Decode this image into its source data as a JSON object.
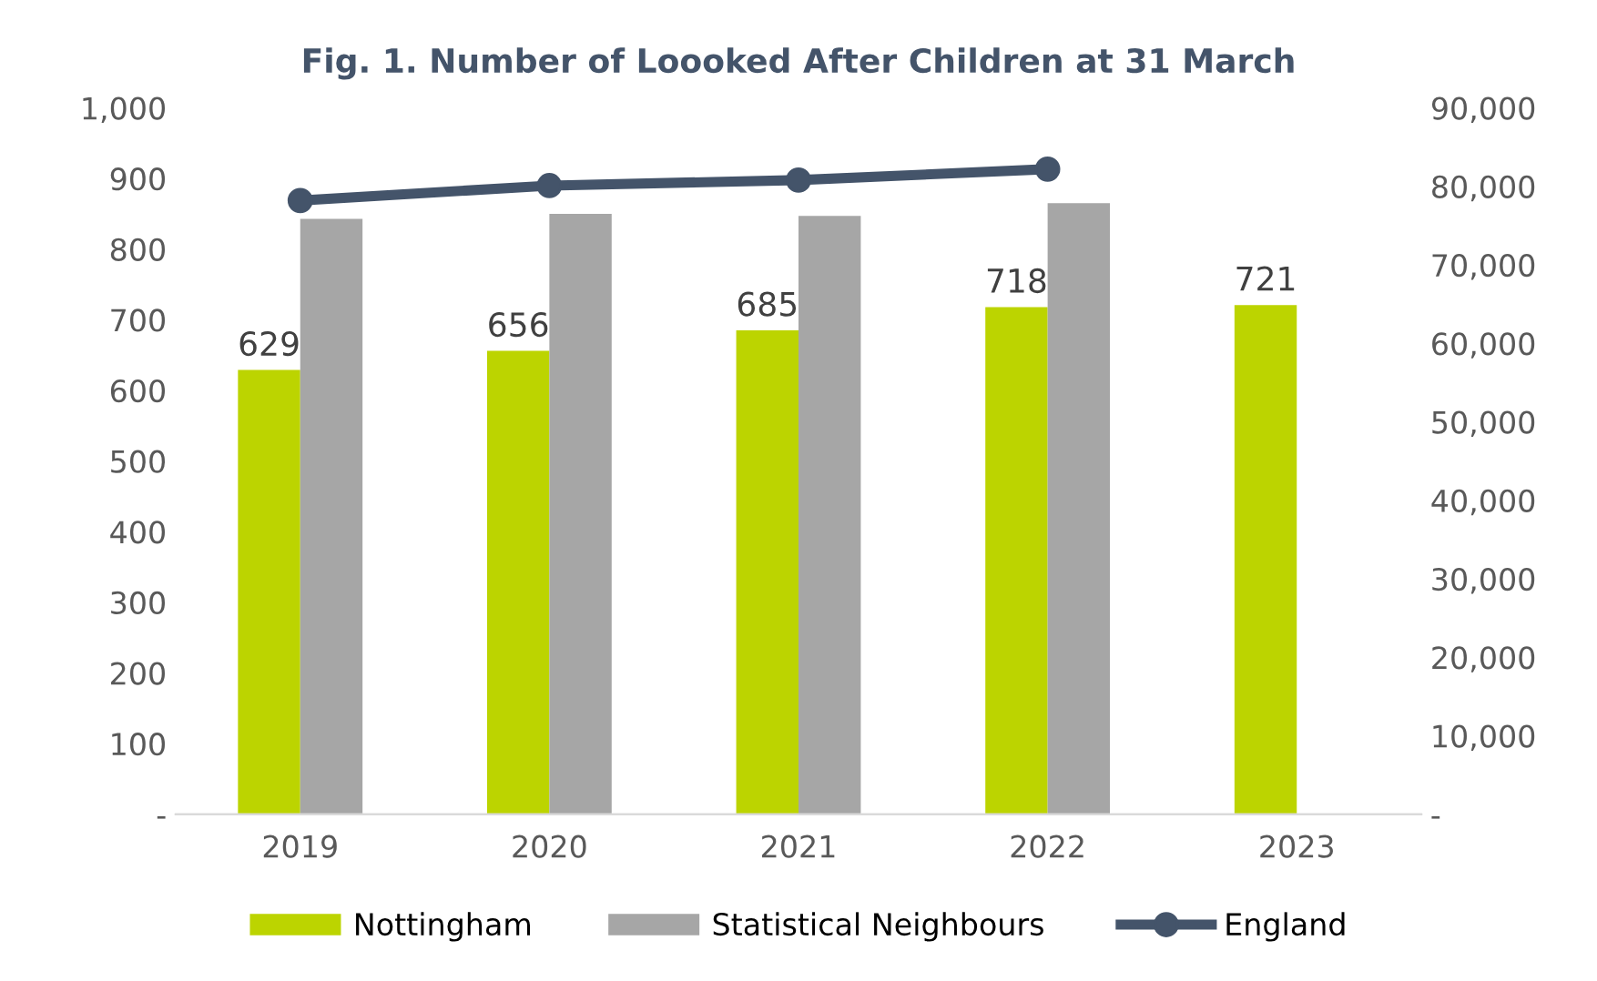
{
  "chart_data": {
    "type": "bar",
    "title": "Fig. 1. Number of Loooked After Children at 31 March",
    "categories": [
      "2019",
      "2020",
      "2021",
      "2022",
      "2023"
    ],
    "series": [
      {
        "name": "Nottingham",
        "color": "#bcd400",
        "values": [
          629,
          656,
          685,
          718,
          721
        ],
        "value_labels": [
          "629",
          "656",
          "685",
          "718",
          "721"
        ]
      },
      {
        "name": "Statistical Neighbours",
        "color": "#a6a6a6",
        "values": [
          843,
          850,
          847,
          865,
          null
        ]
      },
      {
        "name": "England",
        "type": "line",
        "axis": "y2",
        "color": "#44546a",
        "marker": "circle",
        "values": [
          78200,
          80100,
          80800,
          82200,
          null
        ]
      }
    ],
    "ylim": [
      0,
      1000
    ],
    "yticks": [
      {
        "value": 0,
        "label": "-"
      },
      100,
      200,
      300,
      400,
      500,
      600,
      700,
      800,
      900,
      {
        "value": 1000,
        "label": "1,000"
      }
    ],
    "y2lim": [
      0,
      90000
    ],
    "y2ticks": [
      {
        "value": 0,
        "label": "-"
      },
      {
        "value": 10000,
        "label": "10,000"
      },
      {
        "value": 20000,
        "label": "20,000"
      },
      {
        "value": 30000,
        "label": "30,000"
      },
      {
        "value": 40000,
        "label": "40,000"
      },
      {
        "value": 50000,
        "label": "50,000"
      },
      {
        "value": 60000,
        "label": "60,000"
      },
      {
        "value": 70000,
        "label": "70,000"
      },
      {
        "value": 80000,
        "label": "80,000"
      },
      {
        "value": 90000,
        "label": "90,000"
      }
    ],
    "legend": "bottom",
    "grid": false
  }
}
